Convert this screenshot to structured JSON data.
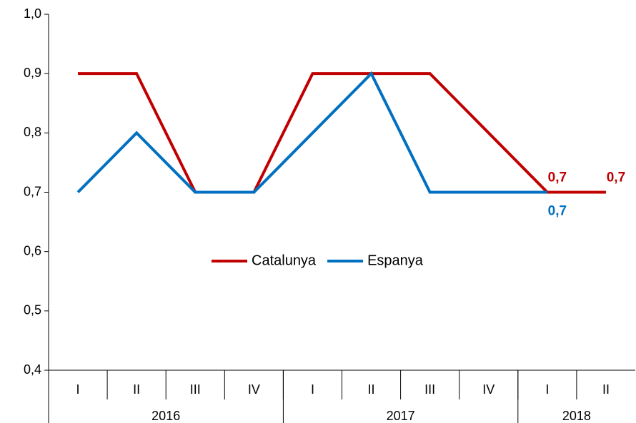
{
  "chart_data": {
    "type": "line",
    "categories": [
      "I",
      "II",
      "III",
      "IV",
      "I",
      "II",
      "III",
      "IV",
      "I",
      "II"
    ],
    "groups": [
      {
        "name": "2016",
        "count": 4
      },
      {
        "name": "2017",
        "count": 4
      },
      {
        "name": "2018",
        "count": 2
      }
    ],
    "series": [
      {
        "name": "Catalunya",
        "color": "#c00000",
        "values": [
          0.9,
          0.9,
          0.7,
          0.7,
          0.9,
          0.9,
          0.9,
          0.8,
          0.7,
          0.7
        ],
        "value_labels": [
          null,
          null,
          null,
          null,
          null,
          null,
          null,
          null,
          "0,7",
          "0,7"
        ]
      },
      {
        "name": "Espanya",
        "color": "#0070c0",
        "values": [
          0.7,
          0.8,
          0.7,
          0.7,
          0.8,
          0.9,
          0.7,
          0.7,
          0.7,
          null
        ],
        "value_labels": [
          null,
          null,
          null,
          null,
          null,
          null,
          null,
          null,
          "0,7",
          null
        ]
      }
    ],
    "ylim": [
      0.4,
      1.0
    ],
    "yticks": [
      {
        "value": 0.4,
        "label": "0,4"
      },
      {
        "value": 0.5,
        "label": "0,5"
      },
      {
        "value": 0.6,
        "label": "0,6"
      },
      {
        "value": 0.7,
        "label": "0,7"
      },
      {
        "value": 0.8,
        "label": "0,8"
      },
      {
        "value": 0.9,
        "label": "0,9"
      },
      {
        "value": 1.0,
        "label": "1,0"
      }
    ],
    "grid": false,
    "legend": "center"
  }
}
